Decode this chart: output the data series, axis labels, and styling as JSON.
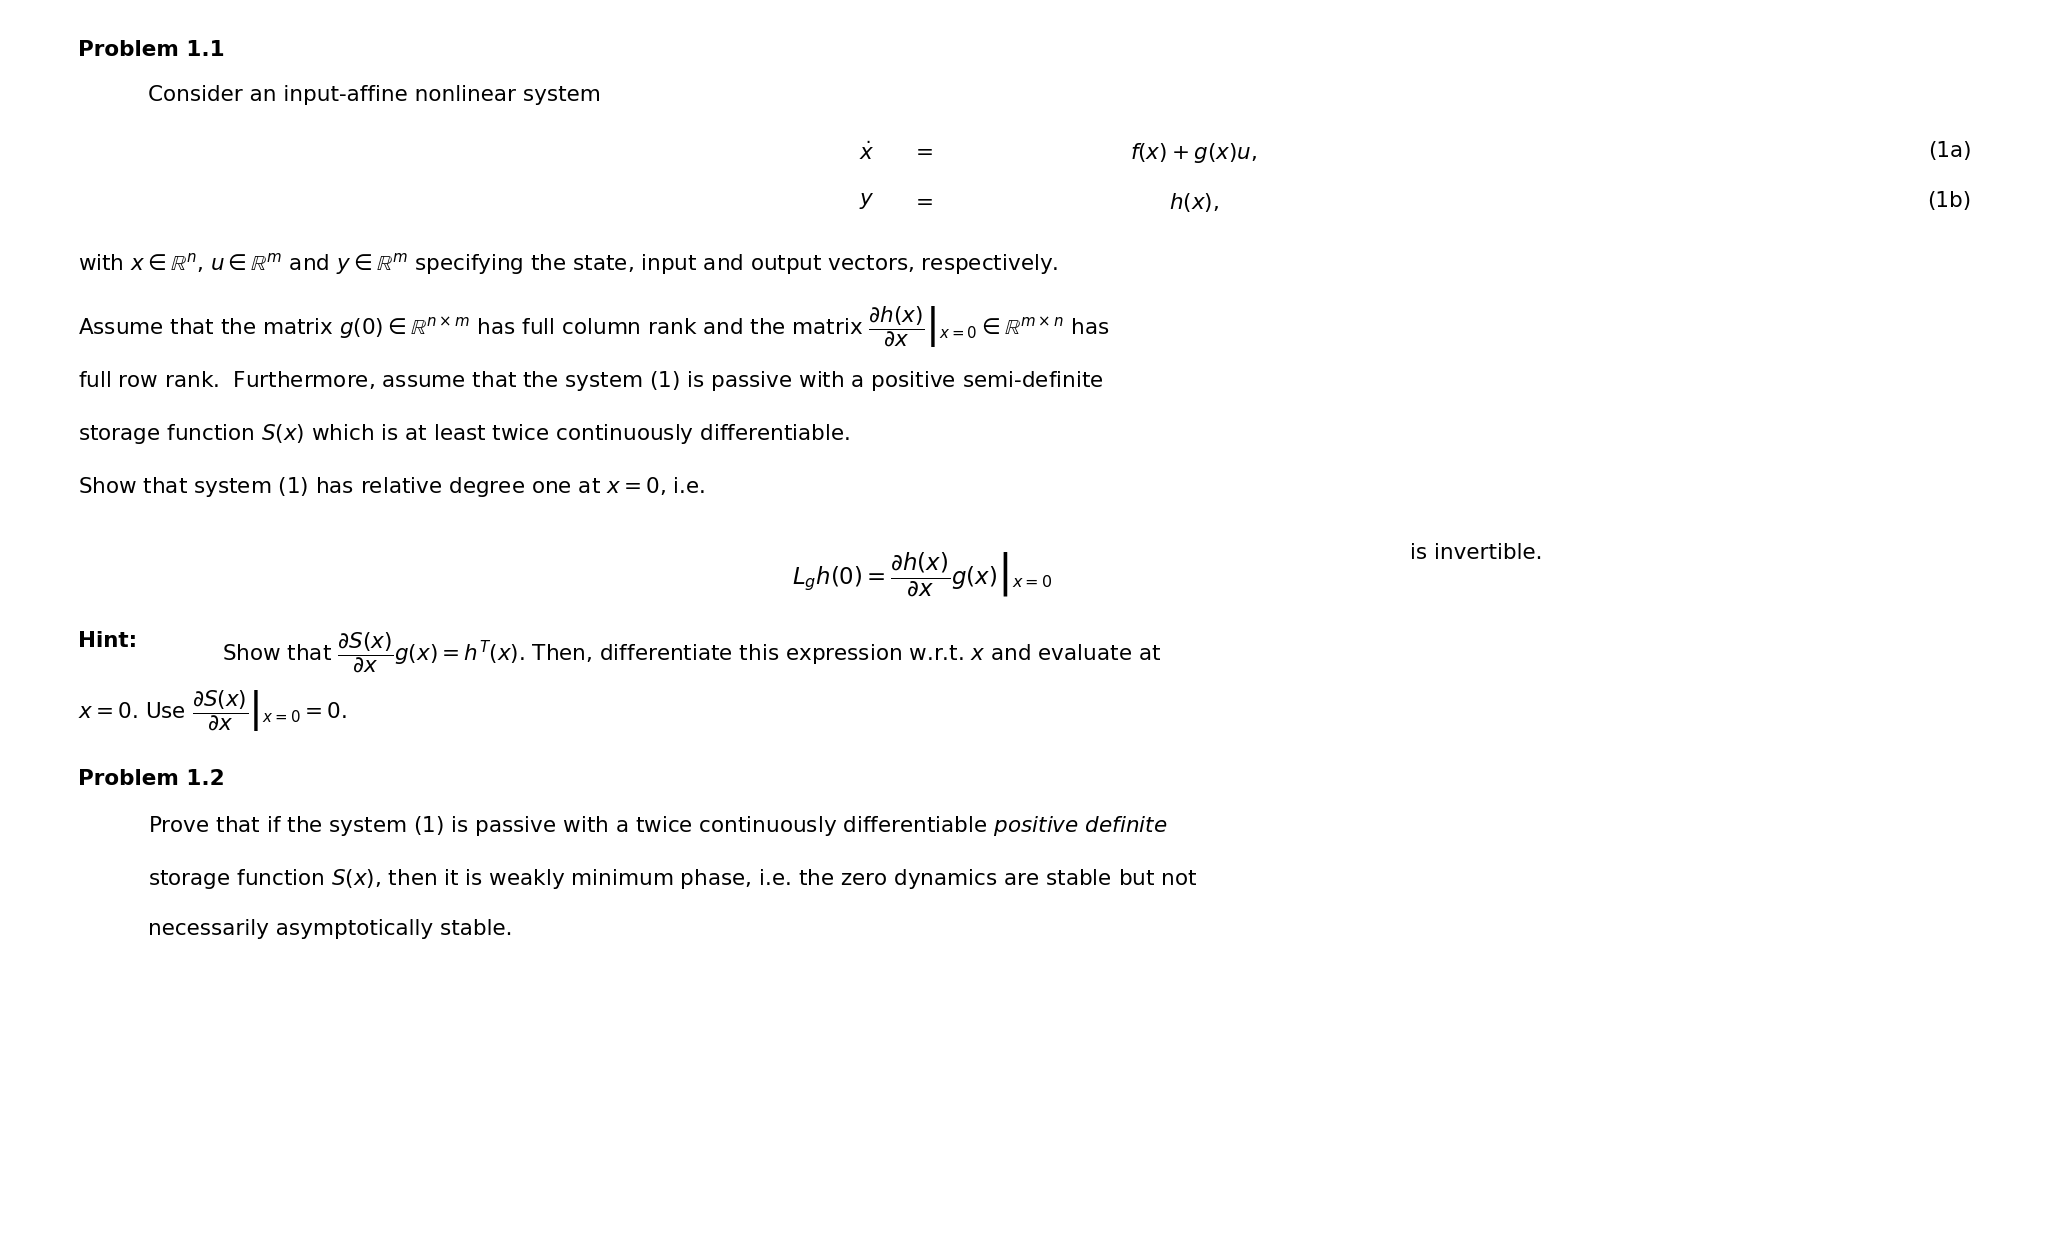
{
  "background_color": "#ffffff",
  "figure_width": 20.58,
  "figure_height": 12.56,
  "dpi": 100,
  "fs": 15.5,
  "problem1_header": "Problem 1.1",
  "problem1_intro": "Consider an input-affine nonlinear system",
  "eq1a_lhs": "$\\dot{x}$",
  "eq1a_eq": "$=$",
  "eq1a_rhs": "$f(x)+g(x)u,$",
  "eq1a_label": "(1a)",
  "eq1b_lhs": "$y$",
  "eq1b_eq": "$=$",
  "eq1b_rhs": "$h(x),$",
  "eq1b_label": "(1b)",
  "line1": "with $x \\in \\mathbb{R}^n$, $u \\in \\mathbb{R}^m$ and $y \\in \\mathbb{R}^m$ specifying the state, input and output vectors, respectively.",
  "line2": "Assume that the matrix $g(0) \\in \\mathbb{R}^{n\\times m}$ has full column rank and the matrix $\\left.\\dfrac{\\partial h(x)}{\\partial x}\\right|_{x=0} \\in \\mathbb{R}^{m\\times n}$ has",
  "line3": "full row rank.  Furthermore, assume that the system $(1)$ is passive with a positive semi-definite",
  "line4": "storage function $S(x)$ which is at least twice continuously differentiable.",
  "line5": "Show that system $(1)$ has relative degree one at $x = 0$, i.e.",
  "display_eq": "$L_g h(0) = \\left.\\dfrac{\\partial h(x)}{\\partial x}g(x)\\right|_{x=0}$",
  "display_eq_suffix": "is invertible.",
  "hint_bold": "Hint:",
  "hint_rest": "Show that $\\dfrac{\\partial S(x)}{\\partial x}g(x) = h^T(x)$. Then, differentiate this expression w.r.t. $x$ and evaluate at",
  "hint_line2": "$x = 0$. Use $\\left.\\dfrac{\\partial S(x)}{\\partial x}\\right|_{x=0} = 0$.",
  "problem2_header": "Problem 1.2",
  "p2l1": "Prove that if the system $(1)$ is passive with a twice continuously differentiable $\\mathit{positive\\ definite}$",
  "p2l2": "storage function $S(x)$, then it is weakly minimum phase, i.e. the zero dynamics are stable but not",
  "p2l3": "necessarily asymptotically stable."
}
